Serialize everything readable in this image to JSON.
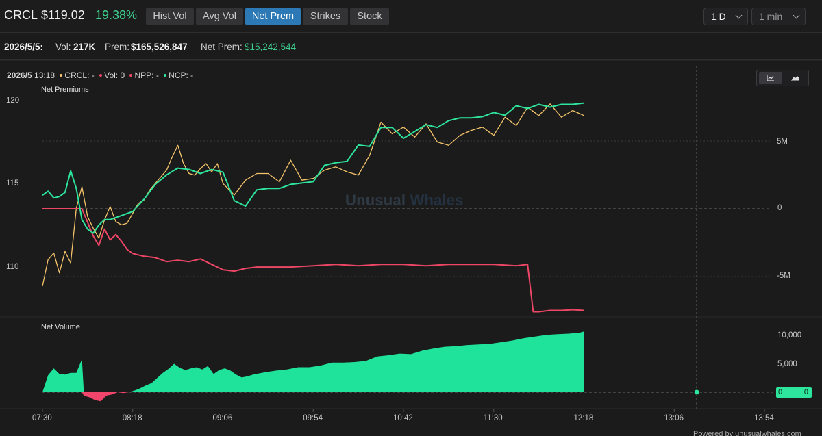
{
  "header": {
    "ticker": "CRCL",
    "price": "$119.02",
    "change": "19.38%",
    "tabs": [
      {
        "label": "Hist Vol",
        "active": false
      },
      {
        "label": "Avg Vol",
        "active": false
      },
      {
        "label": "Net Prem",
        "active": true
      },
      {
        "label": "Strikes",
        "active": false
      },
      {
        "label": "Stock",
        "active": false
      }
    ],
    "range_select": "1 D",
    "interval_select": "1 min"
  },
  "stats": {
    "date": "2026/5/5:",
    "vol_label": "Vol:",
    "vol_value": "217K",
    "prem_label": "Prem:",
    "prem_value": "$165,526,847",
    "net_prem_label": "Net Prem:",
    "net_prem_value": "$15,242,544"
  },
  "legend": {
    "date": "2026/5",
    "time": "13:18",
    "crcl": "CRCL: -",
    "vol": "Vol: 0",
    "npp": "NPP: -",
    "ncp": "NCP: -"
  },
  "colors": {
    "price": "#f5c46a",
    "npp": "#ee4766",
    "ncp": "#2ee59d",
    "volume_pos": "#1fe39b",
    "volume_neg": "#f2456b",
    "tab_active": "#2c79b6"
  },
  "watermark": {
    "part1": "Unusual",
    "part2": "Whales"
  },
  "powered_by": "Powered by unusualwhales.com",
  "zero_badge": {
    "left": "0",
    "right": "0"
  },
  "chart_data": {
    "type": "line",
    "x_ticks": [
      "07:30",
      "08:18",
      "09:06",
      "09:54",
      "10:42",
      "11:30",
      "12:18",
      "13:06",
      "13:54"
    ],
    "crosshair_time": "13:18",
    "panes": [
      {
        "title": "Net Premiums",
        "left_axis": {
          "ticks": [
            "120",
            "115",
            "110"
          ],
          "ylim": [
            107.5,
            120.5
          ]
        },
        "right_axis": {
          "ticks": [
            "5M",
            "0",
            "-5M"
          ],
          "ylim": [
            -8000000,
            8000000
          ]
        },
        "series": [
          {
            "name": "CRCL",
            "axis": "left",
            "x": [
              "07:30",
              "07:33",
              "07:36",
              "07:39",
              "07:42",
              "07:45",
              "07:48",
              "07:51",
              "07:54",
              "07:57",
              "08:00",
              "08:03",
              "08:06",
              "08:09",
              "08:12",
              "08:15",
              "08:18",
              "08:21",
              "08:24",
              "08:27",
              "08:30",
              "08:33",
              "08:36",
              "08:39",
              "08:42",
              "08:45",
              "08:48",
              "08:51",
              "08:54",
              "08:57",
              "09:00",
              "09:03",
              "09:06",
              "09:12",
              "09:18",
              "09:24",
              "09:30",
              "09:36",
              "09:42",
              "09:48",
              "09:54",
              "10:00",
              "10:06",
              "10:12",
              "10:18",
              "10:24",
              "10:30",
              "10:36",
              "10:42",
              "10:48",
              "10:54",
              "11:00",
              "11:06",
              "11:12",
              "11:18",
              "11:24",
              "11:30",
              "11:36",
              "11:42",
              "11:48",
              "11:54",
              "12:00",
              "12:06",
              "12:12",
              "12:18"
            ],
            "values": [
              108.8,
              110.4,
              110.8,
              109.6,
              110.9,
              110.2,
              113.5,
              114.8,
              113.0,
              112.3,
              111.7,
              112.8,
              113.6,
              112.7,
              112.5,
              112.6,
              113.2,
              113.8,
              114.0,
              114.6,
              115.0,
              115.4,
              115.8,
              116.6,
              117.3,
              116.2,
              115.6,
              115.5,
              115.9,
              116.2,
              115.7,
              116.2,
              115.0,
              114.3,
              115.2,
              115.6,
              115.6,
              115.1,
              116.4,
              115.2,
              115.3,
              115.8,
              116.0,
              115.7,
              115.5,
              116.7,
              118.7,
              118.0,
              118.4,
              117.8,
              118.6,
              117.5,
              117.3,
              117.9,
              118.2,
              118.4,
              117.9,
              119.0,
              118.5,
              119.6,
              119.1,
              119.8,
              119.0,
              119.4,
              119.1
            ]
          },
          {
            "name": "NPP",
            "axis": "right",
            "x": [
              "07:30",
              "07:36",
              "07:42",
              "07:48",
              "07:51",
              "07:54",
              "07:57",
              "08:00",
              "08:03",
              "08:06",
              "08:09",
              "08:12",
              "08:15",
              "08:18",
              "08:24",
              "08:30",
              "08:36",
              "08:42",
              "08:48",
              "08:54",
              "09:00",
              "09:06",
              "09:12",
              "09:18",
              "09:24",
              "09:30",
              "09:42",
              "09:54",
              "10:06",
              "10:18",
              "10:30",
              "10:42",
              "10:54",
              "11:06",
              "11:18",
              "11:30",
              "11:42",
              "11:48",
              "11:51",
              "11:54",
              "12:00",
              "12:06",
              "12:12",
              "12:18"
            ],
            "values": [
              0,
              0,
              0,
              0,
              0,
              -1000000,
              -2000000,
              -2700000,
              -1500000,
              -2300000,
              -1900000,
              -2400000,
              -3000000,
              -3300000,
              -3500000,
              -3600000,
              -3900000,
              -3800000,
              -3900000,
              -3700000,
              -4100000,
              -4500000,
              -4600000,
              -4400000,
              -4300000,
              -4300000,
              -4300000,
              -4200000,
              -4100000,
              -4200000,
              -4100000,
              -4100000,
              -4200000,
              -4100000,
              -4100000,
              -4100000,
              -4200000,
              -4100000,
              -7600000,
              -7600000,
              -7500000,
              -7500000,
              -7450000,
              -7500000
            ]
          },
          {
            "name": "NCP",
            "axis": "right",
            "x": [
              "07:30",
              "07:33",
              "07:36",
              "07:39",
              "07:42",
              "07:45",
              "07:48",
              "07:51",
              "07:54",
              "07:57",
              "08:00",
              "08:03",
              "08:06",
              "08:12",
              "08:18",
              "08:24",
              "08:30",
              "08:36",
              "08:42",
              "08:48",
              "08:54",
              "09:00",
              "09:06",
              "09:12",
              "09:18",
              "09:24",
              "09:30",
              "09:36",
              "09:42",
              "09:48",
              "09:54",
              "10:00",
              "10:06",
              "10:12",
              "10:18",
              "10:24",
              "10:30",
              "10:36",
              "10:42",
              "10:48",
              "10:54",
              "11:00",
              "11:06",
              "11:12",
              "11:18",
              "11:24",
              "11:30",
              "11:36",
              "11:42",
              "11:48",
              "11:54",
              "12:00",
              "12:06",
              "12:12",
              "12:18"
            ],
            "values": [
              1000000,
              1300000,
              800000,
              900000,
              1200000,
              2800000,
              1500000,
              -800000,
              -1500000,
              -1800000,
              -1200000,
              -800000,
              -800000,
              -500000,
              -200000,
              700000,
              1800000,
              2500000,
              3000000,
              2900000,
              2600000,
              2900000,
              2700000,
              600000,
              200000,
              1400000,
              1500000,
              1500000,
              1800000,
              1900000,
              2000000,
              3200000,
              3400000,
              3500000,
              4700000,
              4600000,
              6000000,
              6000000,
              5200000,
              5700000,
              6200000,
              6000000,
              6500000,
              6700000,
              6700000,
              6800000,
              7100000,
              6900000,
              7600000,
              7400000,
              7700000,
              7500000,
              7700000,
              7700000,
              7800000
            ]
          }
        ]
      },
      {
        "title": "Net Volume",
        "type": "area",
        "right_axis": {
          "ticks": [
            "10,000",
            "5,000",
            "0"
          ],
          "ylim": [
            -2500,
            11500
          ]
        },
        "series": [
          {
            "name": "Vol",
            "x": [
              "07:30",
              "07:33",
              "07:36",
              "07:39",
              "07:42",
              "07:45",
              "07:48",
              "07:51",
              "07:52",
              "07:55",
              "07:58",
              "08:01",
              "08:04",
              "08:07",
              "08:10",
              "08:13",
              "08:16",
              "08:19",
              "08:22",
              "08:25",
              "08:28",
              "08:31",
              "08:34",
              "08:37",
              "08:40",
              "08:43",
              "08:46",
              "08:49",
              "08:52",
              "08:55",
              "08:58",
              "09:01",
              "09:04",
              "09:07",
              "09:10",
              "09:13",
              "09:16",
              "09:19",
              "09:22",
              "09:25",
              "09:28",
              "09:34",
              "09:40",
              "09:46",
              "09:52",
              "09:58",
              "10:04",
              "10:10",
              "10:16",
              "10:22",
              "10:28",
              "10:34",
              "10:40",
              "10:46",
              "10:52",
              "10:58",
              "11:04",
              "11:10",
              "11:16",
              "11:22",
              "11:28",
              "11:34",
              "11:40",
              "11:46",
              "11:52",
              "11:58",
              "12:04",
              "12:10",
              "12:16",
              "12:18"
            ],
            "values": [
              0,
              3000,
              4200,
              3200,
              3100,
              3400,
              3400,
              5800,
              -600,
              -900,
              -1400,
              -1600,
              -600,
              -400,
              0,
              -150,
              0,
              300,
              700,
              1200,
              1600,
              2500,
              3400,
              4100,
              5000,
              4300,
              3900,
              4200,
              4400,
              4000,
              4600,
              3200,
              3900,
              4200,
              3800,
              3100,
              2600,
              2800,
              3100,
              3300,
              3500,
              3800,
              4000,
              4400,
              4400,
              4700,
              5200,
              5200,
              5300,
              5500,
              6300,
              6500,
              6800,
              6700,
              7300,
              7700,
              8000,
              8100,
              8300,
              8400,
              8500,
              8800,
              9100,
              9500,
              9800,
              10100,
              10200,
              10300,
              10500,
              10700
            ]
          }
        ]
      }
    ]
  }
}
